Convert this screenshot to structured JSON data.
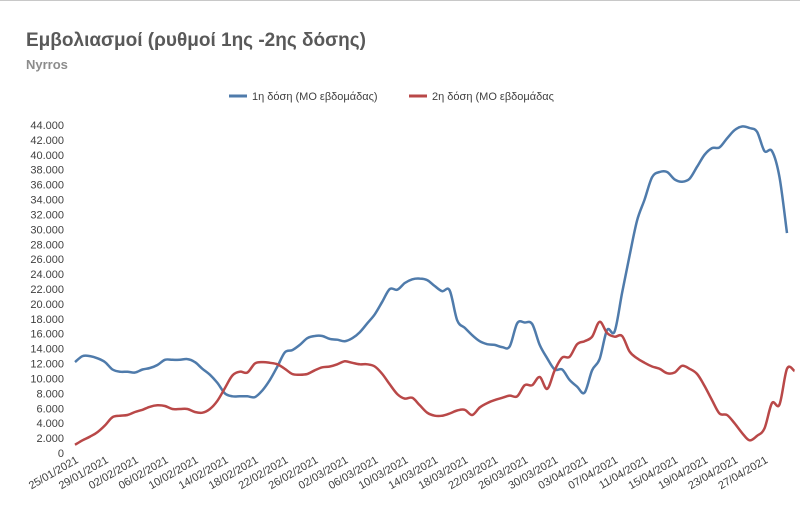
{
  "title": "Εμβολιασμοί (ρυθμοί 1ης -2ης δόσης)",
  "subtitle": "Nyrros",
  "colors": {
    "series1": "#4f7bab",
    "series2": "#b94848"
  },
  "chart_data": {
    "type": "line",
    "title": "Εμβολιασμοί (ρυθμοί 1ης -2ης δόσης)",
    "subtitle": "Nyrros",
    "legend_position": "top-center",
    "grid": false,
    "ylim": [
      0,
      44000
    ],
    "y_ticks": [
      "0",
      "2.000",
      "4.000",
      "6.000",
      "8.000",
      "10.000",
      "12.000",
      "14.000",
      "16.000",
      "18.000",
      "20.000",
      "22.000",
      "24.000",
      "26.000",
      "28.000",
      "30.000",
      "32.000",
      "34.000",
      "36.000",
      "38.000",
      "40.000",
      "42.000",
      "44.000"
    ],
    "x_ticks": [
      "25/01/2021",
      "29/01/2021",
      "02/02/2021",
      "06/02/2021",
      "10/02/2021",
      "14/02/2021",
      "18/02/2021",
      "22/02/2021",
      "26/02/2021",
      "02/03/2021",
      "06/03/2021",
      "10/03/2021",
      "14/03/2021",
      "18/03/2021",
      "22/03/2021",
      "26/03/2021",
      "30/03/2021",
      "03/04/2021",
      "07/04/2021",
      "11/04/2021",
      "15/04/2021",
      "19/04/2021",
      "23/04/2021",
      "27/04/2021"
    ],
    "x_start": "2021-01-25",
    "x_end": "2021-04-28",
    "series": [
      {
        "name": "1η δόση (ΜΟ εβδομάδας)",
        "points": [
          [
            "2021-01-25",
            12200
          ],
          [
            "2021-01-26",
            13000
          ],
          [
            "2021-01-27",
            13000
          ],
          [
            "2021-01-28",
            12700
          ],
          [
            "2021-01-29",
            12200
          ],
          [
            "2021-01-30",
            11200
          ],
          [
            "2021-01-31",
            10900
          ],
          [
            "2021-02-01",
            10900
          ],
          [
            "2021-02-02",
            10800
          ],
          [
            "2021-02-03",
            11200
          ],
          [
            "2021-02-04",
            11400
          ],
          [
            "2021-02-05",
            11800
          ],
          [
            "2021-02-06",
            12500
          ],
          [
            "2021-02-07",
            12500
          ],
          [
            "2021-02-08",
            12500
          ],
          [
            "2021-02-09",
            12600
          ],
          [
            "2021-02-10",
            12200
          ],
          [
            "2021-02-11",
            11300
          ],
          [
            "2021-02-12",
            10500
          ],
          [
            "2021-02-13",
            9400
          ],
          [
            "2021-02-14",
            8000
          ],
          [
            "2021-02-15",
            7600
          ],
          [
            "2021-02-16",
            7600
          ],
          [
            "2021-02-17",
            7600
          ],
          [
            "2021-02-18",
            7500
          ],
          [
            "2021-02-19",
            8400
          ],
          [
            "2021-02-20",
            9800
          ],
          [
            "2021-02-21",
            11600
          ],
          [
            "2021-02-22",
            13500
          ],
          [
            "2021-02-23",
            13800
          ],
          [
            "2021-02-24",
            14500
          ],
          [
            "2021-02-25",
            15400
          ],
          [
            "2021-02-26",
            15700
          ],
          [
            "2021-02-27",
            15700
          ],
          [
            "2021-02-28",
            15300
          ],
          [
            "2021-03-01",
            15200
          ],
          [
            "2021-03-02",
            15000
          ],
          [
            "2021-03-03",
            15400
          ],
          [
            "2021-03-04",
            16200
          ],
          [
            "2021-03-05",
            17400
          ],
          [
            "2021-03-06",
            18600
          ],
          [
            "2021-03-07",
            20300
          ],
          [
            "2021-03-08",
            22000
          ],
          [
            "2021-03-09",
            21900
          ],
          [
            "2021-03-10",
            22800
          ],
          [
            "2021-03-11",
            23300
          ],
          [
            "2021-03-12",
            23400
          ],
          [
            "2021-03-13",
            23200
          ],
          [
            "2021-03-14",
            22400
          ],
          [
            "2021-03-15",
            21700
          ],
          [
            "2021-03-16",
            21800
          ],
          [
            "2021-03-17",
            17800
          ],
          [
            "2021-03-18",
            16800
          ],
          [
            "2021-03-19",
            15800
          ],
          [
            "2021-03-20",
            15000
          ],
          [
            "2021-03-21",
            14600
          ],
          [
            "2021-03-22",
            14500
          ],
          [
            "2021-03-23",
            14200
          ],
          [
            "2021-03-24",
            14300
          ],
          [
            "2021-03-25",
            17400
          ],
          [
            "2021-03-26",
            17500
          ],
          [
            "2021-03-27",
            17300
          ],
          [
            "2021-03-28",
            14500
          ],
          [
            "2021-03-29",
            12700
          ],
          [
            "2021-03-30",
            11200
          ],
          [
            "2021-03-31",
            11200
          ],
          [
            "2021-04-01",
            9800
          ],
          [
            "2021-04-02",
            8900
          ],
          [
            "2021-04-03",
            8100
          ],
          [
            "2021-04-04",
            11100
          ],
          [
            "2021-04-05",
            12600
          ],
          [
            "2021-04-06",
            16500
          ],
          [
            "2021-04-07",
            16300
          ],
          [
            "2021-04-08",
            21500
          ],
          [
            "2021-04-09",
            26500
          ],
          [
            "2021-04-10",
            31200
          ],
          [
            "2021-04-11",
            34000
          ],
          [
            "2021-04-12",
            37000
          ],
          [
            "2021-04-13",
            37700
          ],
          [
            "2021-04-14",
            37700
          ],
          [
            "2021-04-15",
            36700
          ],
          [
            "2021-04-16",
            36400
          ],
          [
            "2021-04-17",
            36800
          ],
          [
            "2021-04-18",
            38400
          ],
          [
            "2021-04-19",
            40000
          ],
          [
            "2021-04-20",
            40900
          ],
          [
            "2021-04-21",
            41000
          ],
          [
            "2021-04-22",
            42200
          ],
          [
            "2021-04-23",
            43300
          ],
          [
            "2021-04-24",
            43800
          ],
          [
            "2021-04-25",
            43600
          ],
          [
            "2021-04-26",
            43100
          ],
          [
            "2021-04-27",
            40500
          ],
          [
            "2021-04-28",
            40500
          ],
          [
            "2021-04-29",
            37000
          ],
          [
            "2021-04-30",
            29500
          ]
        ]
      },
      {
        "name": "2η δόση (ΜΟ εβδομάδας",
        "points": [
          [
            "2021-01-25",
            1100
          ],
          [
            "2021-01-26",
            1700
          ],
          [
            "2021-01-27",
            2200
          ],
          [
            "2021-01-28",
            2800
          ],
          [
            "2021-01-29",
            3700
          ],
          [
            "2021-01-30",
            4800
          ],
          [
            "2021-01-31",
            5000
          ],
          [
            "2021-02-01",
            5100
          ],
          [
            "2021-02-02",
            5500
          ],
          [
            "2021-02-03",
            5800
          ],
          [
            "2021-02-04",
            6200
          ],
          [
            "2021-02-05",
            6400
          ],
          [
            "2021-02-06",
            6300
          ],
          [
            "2021-02-07",
            5900
          ],
          [
            "2021-02-08",
            5900
          ],
          [
            "2021-02-09",
            5900
          ],
          [
            "2021-02-10",
            5500
          ],
          [
            "2021-02-11",
            5400
          ],
          [
            "2021-02-12",
            5900
          ],
          [
            "2021-02-13",
            7000
          ],
          [
            "2021-02-14",
            8700
          ],
          [
            "2021-02-15",
            10400
          ],
          [
            "2021-02-16",
            10900
          ],
          [
            "2021-02-17",
            10800
          ],
          [
            "2021-02-18",
            12000
          ],
          [
            "2021-02-19",
            12200
          ],
          [
            "2021-02-20",
            12100
          ],
          [
            "2021-02-21",
            11900
          ],
          [
            "2021-02-22",
            11300
          ],
          [
            "2021-02-23",
            10600
          ],
          [
            "2021-02-24",
            10500
          ],
          [
            "2021-02-25",
            10600
          ],
          [
            "2021-02-26",
            11100
          ],
          [
            "2021-02-27",
            11500
          ],
          [
            "2021-02-28",
            11600
          ],
          [
            "2021-03-01",
            11900
          ],
          [
            "2021-03-02",
            12300
          ],
          [
            "2021-03-03",
            12100
          ],
          [
            "2021-03-04",
            11900
          ],
          [
            "2021-03-05",
            11900
          ],
          [
            "2021-03-06",
            11600
          ],
          [
            "2021-03-07",
            10600
          ],
          [
            "2021-03-08",
            9200
          ],
          [
            "2021-03-09",
            7900
          ],
          [
            "2021-03-10",
            7300
          ],
          [
            "2021-03-11",
            7400
          ],
          [
            "2021-03-12",
            6400
          ],
          [
            "2021-03-13",
            5400
          ],
          [
            "2021-03-14",
            5000
          ],
          [
            "2021-03-15",
            5000
          ],
          [
            "2021-03-16",
            5300
          ],
          [
            "2021-03-17",
            5700
          ],
          [
            "2021-03-18",
            5800
          ],
          [
            "2021-03-19",
            5100
          ],
          [
            "2021-03-20",
            6100
          ],
          [
            "2021-03-21",
            6700
          ],
          [
            "2021-03-22",
            7100
          ],
          [
            "2021-03-23",
            7400
          ],
          [
            "2021-03-24",
            7700
          ],
          [
            "2021-03-25",
            7600
          ],
          [
            "2021-03-26",
            9100
          ],
          [
            "2021-03-27",
            9100
          ],
          [
            "2021-03-28",
            10200
          ],
          [
            "2021-03-29",
            8600
          ],
          [
            "2021-03-30",
            11100
          ],
          [
            "2021-03-31",
            12800
          ],
          [
            "2021-04-01",
            12900
          ],
          [
            "2021-04-02",
            14600
          ],
          [
            "2021-04-03",
            15000
          ],
          [
            "2021-04-04",
            15600
          ],
          [
            "2021-04-05",
            17600
          ],
          [
            "2021-04-06",
            16100
          ],
          [
            "2021-04-07",
            15600
          ],
          [
            "2021-04-08",
            15700
          ],
          [
            "2021-04-09",
            13600
          ],
          [
            "2021-04-10",
            12700
          ],
          [
            "2021-04-11",
            12100
          ],
          [
            "2021-04-12",
            11600
          ],
          [
            "2021-04-13",
            11300
          ],
          [
            "2021-04-14",
            10700
          ],
          [
            "2021-04-15",
            10800
          ],
          [
            "2021-04-16",
            11700
          ],
          [
            "2021-04-17",
            11300
          ],
          [
            "2021-04-18",
            10600
          ],
          [
            "2021-04-19",
            9000
          ],
          [
            "2021-04-20",
            7100
          ],
          [
            "2021-04-21",
            5300
          ],
          [
            "2021-04-22",
            5100
          ],
          [
            "2021-04-23",
            4000
          ],
          [
            "2021-04-24",
            2700
          ],
          [
            "2021-04-25",
            1700
          ],
          [
            "2021-04-26",
            2300
          ],
          [
            "2021-04-27",
            3300
          ],
          [
            "2021-04-28",
            6700
          ],
          [
            "2021-04-29",
            6500
          ],
          [
            "2021-04-30",
            11300
          ],
          [
            "2021-05-01",
            11000
          ]
        ]
      }
    ]
  }
}
